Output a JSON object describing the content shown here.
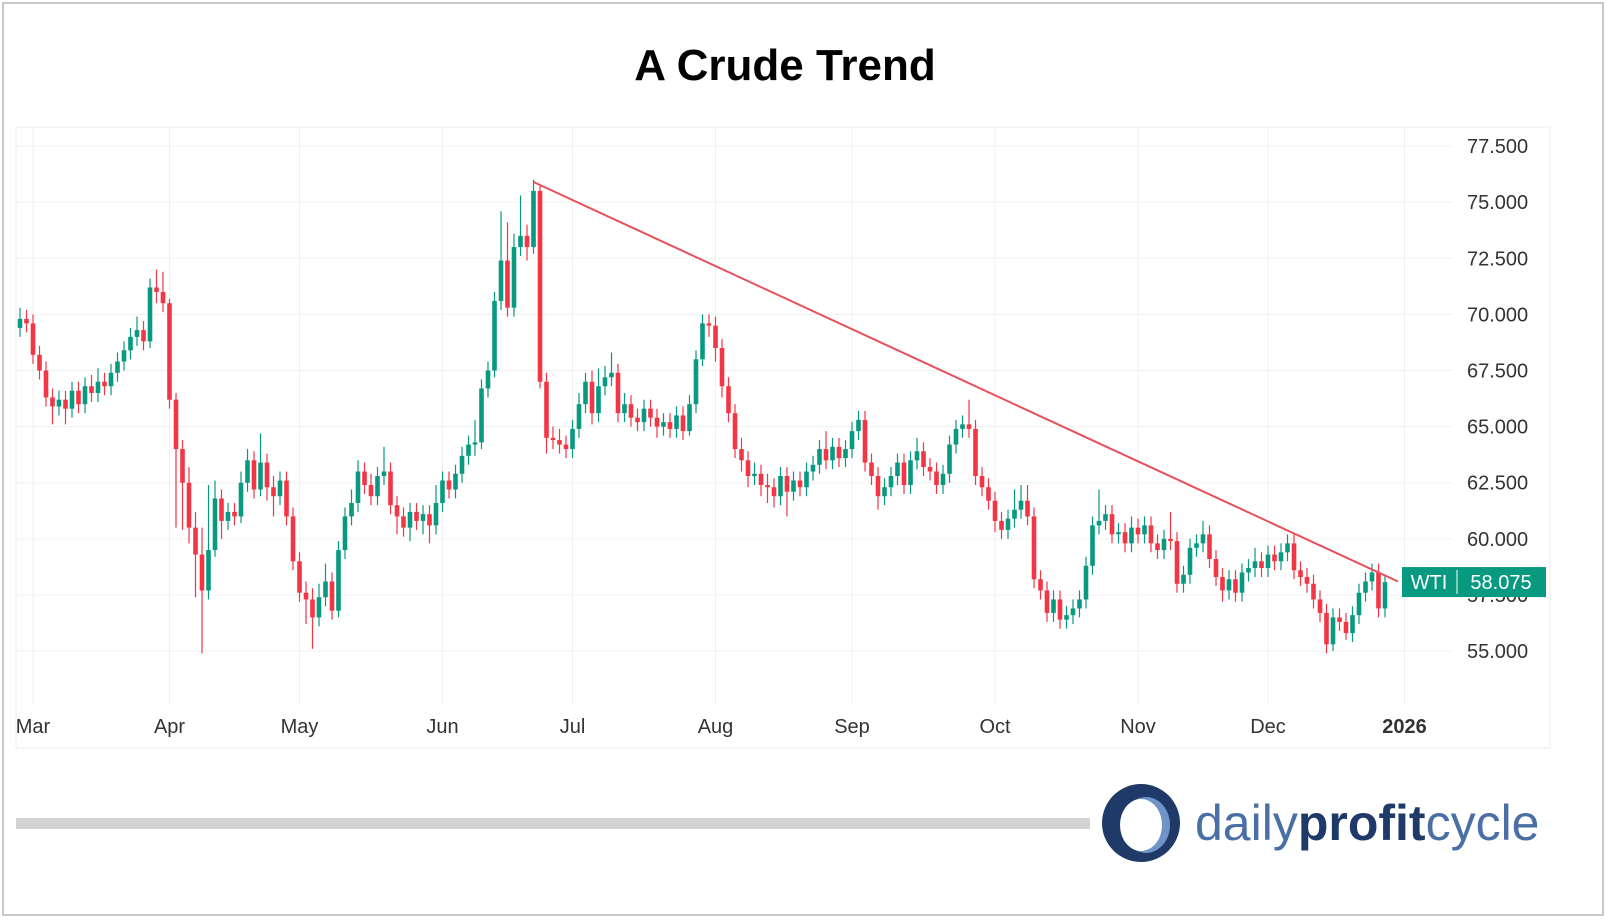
{
  "chart_data": {
    "type": "candlestick",
    "title": "A Crude Trend",
    "categories": [
      null,
      null,
      "Mar",
      null,
      null,
      null,
      null,
      null,
      null,
      null,
      null,
      null,
      null,
      null,
      null,
      null,
      null,
      null,
      null,
      null,
      null,
      null,
      null,
      "Apr",
      null,
      null,
      null,
      null,
      null,
      null,
      null,
      null,
      null,
      null,
      null,
      null,
      null,
      null,
      null,
      null,
      null,
      null,
      null,
      "May",
      null,
      null,
      null,
      null,
      null,
      null,
      null,
      null,
      null,
      null,
      null,
      null,
      null,
      null,
      null,
      null,
      null,
      null,
      null,
      null,
      null,
      "Jun",
      null,
      null,
      null,
      null,
      null,
      null,
      null,
      null,
      null,
      null,
      null,
      null,
      null,
      null,
      null,
      null,
      null,
      null,
      null,
      "Jul",
      null,
      null,
      null,
      null,
      null,
      null,
      null,
      null,
      null,
      null,
      null,
      null,
      null,
      null,
      null,
      null,
      null,
      null,
      null,
      null,
      null,
      "Aug",
      null,
      null,
      null,
      null,
      null,
      null,
      null,
      null,
      null,
      null,
      null,
      null,
      null,
      null,
      null,
      null,
      null,
      null,
      null,
      null,
      "Sep",
      null,
      null,
      null,
      null,
      null,
      null,
      null,
      null,
      null,
      null,
      null,
      null,
      null,
      null,
      null,
      null,
      null,
      null,
      null,
      null,
      null,
      "Oct",
      null,
      null,
      null,
      null,
      null,
      null,
      null,
      null,
      null,
      null,
      null,
      null,
      null,
      null,
      null,
      null,
      null,
      null,
      null,
      null,
      null,
      "Nov",
      null,
      null,
      null,
      null,
      null,
      null,
      null,
      null,
      null,
      null,
      null,
      null,
      null,
      null,
      null,
      null,
      null,
      null,
      null,
      "Dec",
      null,
      null,
      null,
      null,
      null,
      null,
      null,
      null,
      null,
      null,
      null,
      null,
      null,
      null,
      null,
      null,
      null,
      null,
      null,
      null,
      "2026"
    ],
    "series": [
      {
        "name": "WTI",
        "color_up": "#089981",
        "color_down": "#f23645",
        "last_value_label": "58.075",
        "open": [
          69.4,
          69.8,
          69.6,
          68.2,
          67.5,
          66.3,
          65.9,
          66.2,
          65.8,
          66.6,
          66.0,
          66.8,
          66.5,
          67.0,
          66.8,
          67.4,
          67.9,
          68.4,
          69.0,
          69.3,
          68.8,
          71.2,
          71.0,
          70.5,
          66.2,
          64.0,
          62.5,
          60.5,
          59.3,
          57.7,
          59.5,
          61.8,
          60.8,
          61.2,
          61.0,
          62.5,
          63.5,
          62.2,
          63.4,
          62.3,
          61.9,
          62.6,
          61.0,
          59.0,
          57.6,
          57.3,
          56.5,
          57.4,
          58.1,
          56.8,
          59.5,
          61.0,
          61.6,
          63.0,
          62.4,
          61.9,
          62.8,
          63.0,
          61.5,
          61.0,
          60.5,
          61.2,
          60.8,
          61.1,
          60.6,
          61.6,
          62.6,
          62.2,
          62.9,
          63.7,
          64.2,
          64.3,
          66.7,
          67.5,
          70.6,
          72.4,
          70.3,
          73.0,
          73.5,
          73.0,
          75.5,
          67.0,
          64.5,
          64.4,
          64.2,
          64.0,
          64.9,
          66.0,
          67.0,
          65.6,
          66.8,
          67.2,
          67.4,
          65.6,
          66.0,
          65.4,
          65.2,
          65.8,
          65.4,
          65.0,
          65.2,
          64.9,
          65.5,
          64.8,
          66.0,
          68.0,
          69.6,
          69.5,
          68.5,
          66.8,
          65.6,
          64.0,
          63.5,
          62.8,
          62.9,
          62.4,
          62.3,
          61.9,
          62.8,
          62.1,
          62.6,
          62.3,
          63.0,
          63.3,
          64.0,
          63.5,
          64.1,
          63.6,
          64.0,
          64.8,
          65.3,
          63.4,
          62.8,
          61.9,
          62.3,
          62.8,
          63.4,
          62.4,
          63.5,
          63.9,
          63.2,
          63.0,
          62.4,
          62.9,
          64.2,
          64.9,
          65.1,
          64.9,
          62.8,
          62.3,
          61.7,
          60.8,
          60.4,
          60.9,
          61.3,
          61.7,
          61.0,
          58.2,
          57.7,
          56.7,
          57.3,
          56.4,
          56.6,
          56.9,
          57.3,
          58.8,
          60.6,
          60.8,
          61.1,
          60.2,
          60.3,
          59.8,
          60.5,
          60.2,
          60.6,
          59.8,
          59.5,
          60.0,
          59.9,
          58.0,
          58.4,
          59.6,
          59.8,
          60.2,
          59.1,
          58.3,
          57.7,
          58.2,
          57.6,
          58.5,
          58.7,
          59.0,
          58.7,
          59.3,
          59.0,
          59.4,
          59.8,
          58.6,
          58.3,
          58.0,
          57.3,
          56.7,
          55.3,
          56.5,
          56.3,
          55.8,
          56.6,
          57.6,
          58.1,
          58.5,
          56.9,
          null,
          null,
          null
        ],
        "high": [
          70.3,
          70.2,
          70.0,
          68.6,
          67.9,
          66.7,
          66.6,
          66.6,
          67.0,
          67.0,
          67.2,
          67.3,
          67.6,
          67.4,
          67.8,
          68.3,
          68.8,
          69.4,
          69.9,
          69.7,
          71.6,
          72.0,
          71.9,
          70.7,
          66.5,
          64.4,
          63.2,
          61.2,
          60.5,
          62.4,
          62.6,
          62.2,
          61.6,
          61.6,
          63.0,
          64.0,
          63.9,
          64.7,
          63.8,
          62.8,
          63.0,
          63.0,
          61.4,
          59.4,
          58.1,
          57.8,
          58.0,
          58.9,
          58.5,
          59.9,
          61.4,
          62.2,
          63.5,
          63.4,
          62.9,
          63.2,
          64.1,
          63.4,
          61.9,
          61.4,
          61.6,
          61.6,
          61.5,
          61.5,
          62.4,
          63.0,
          63.0,
          63.3,
          64.1,
          64.6,
          65.3,
          67.1,
          67.9,
          71.0,
          74.6,
          74.1,
          73.6,
          75.3,
          74.0,
          76.0,
          75.8,
          67.4,
          65.0,
          64.9,
          64.6,
          65.3,
          66.5,
          67.4,
          67.5,
          67.6,
          67.7,
          68.3,
          67.8,
          66.5,
          66.4,
          65.8,
          66.2,
          66.2,
          65.8,
          65.6,
          65.6,
          65.9,
          65.9,
          66.4,
          68.4,
          70.0,
          70.0,
          69.9,
          68.9,
          67.2,
          66.0,
          64.5,
          63.9,
          63.4,
          63.3,
          62.9,
          62.7,
          63.2,
          63.2,
          63.0,
          63.0,
          63.4,
          63.7,
          64.4,
          64.8,
          64.5,
          64.5,
          64.4,
          65.2,
          65.7,
          65.7,
          63.8,
          63.2,
          62.7,
          63.2,
          63.8,
          63.8,
          63.9,
          64.5,
          64.3,
          63.6,
          63.4,
          63.3,
          64.6,
          65.3,
          65.5,
          66.2,
          65.3,
          63.2,
          62.7,
          62.1,
          61.2,
          61.3,
          62.2,
          62.4,
          62.4,
          61.4,
          58.6,
          58.1,
          57.7,
          57.7,
          57.0,
          57.3,
          57.7,
          59.2,
          61.0,
          62.2,
          61.5,
          61.5,
          60.7,
          60.7,
          61.0,
          60.9,
          61.0,
          61.0,
          60.2,
          60.4,
          61.2,
          60.3,
          58.8,
          60.0,
          60.2,
          60.8,
          60.6,
          59.5,
          58.7,
          58.6,
          58.6,
          58.9,
          59.1,
          59.6,
          59.4,
          59.7,
          59.7,
          59.8,
          60.2,
          60.2,
          59.0,
          58.7,
          58.4,
          57.7,
          57.1,
          56.9,
          56.9,
          56.7,
          57.0,
          58.0,
          58.5,
          58.9,
          58.9,
          58.4,
          null,
          null,
          null
        ],
        "low": [
          69.0,
          69.2,
          67.8,
          67.1,
          65.9,
          65.1,
          65.5,
          65.1,
          65.4,
          65.6,
          65.6,
          66.1,
          66.1,
          66.4,
          66.4,
          67.0,
          67.5,
          68.0,
          68.6,
          68.4,
          68.5,
          70.5,
          70.1,
          65.8,
          60.5,
          60.4,
          59.8,
          57.4,
          54.9,
          57.3,
          59.2,
          60.0,
          60.4,
          60.6,
          60.7,
          62.1,
          61.8,
          61.9,
          61.7,
          61.0,
          61.5,
          60.6,
          58.6,
          57.2,
          56.2,
          55.1,
          56.1,
          57.0,
          56.4,
          56.5,
          59.1,
          60.6,
          61.2,
          62.0,
          61.5,
          61.5,
          62.4,
          61.1,
          60.2,
          60.1,
          59.9,
          60.4,
          60.2,
          59.8,
          60.2,
          61.2,
          61.8,
          61.8,
          62.5,
          63.3,
          63.7,
          64.0,
          66.3,
          67.2,
          70.2,
          69.9,
          69.9,
          72.6,
          72.4,
          72.7,
          66.7,
          63.8,
          64.0,
          63.8,
          63.6,
          63.6,
          64.5,
          65.6,
          65.1,
          65.2,
          66.4,
          66.8,
          65.2,
          65.2,
          65.0,
          64.8,
          64.8,
          65.0,
          64.5,
          64.6,
          64.5,
          64.5,
          64.4,
          64.6,
          65.6,
          67.7,
          69.0,
          67.9,
          66.3,
          65.2,
          63.6,
          63.0,
          62.3,
          62.4,
          61.9,
          61.6,
          61.4,
          61.5,
          61.0,
          61.7,
          61.9,
          61.9,
          62.6,
          62.9,
          63.1,
          63.1,
          63.2,
          63.2,
          63.6,
          64.4,
          63.0,
          62.4,
          61.3,
          61.5,
          61.9,
          62.4,
          62.0,
          62.0,
          63.1,
          62.8,
          62.6,
          62.0,
          62.0,
          62.5,
          63.8,
          64.5,
          64.5,
          62.4,
          61.9,
          61.3,
          60.3,
          60.0,
          60.0,
          60.5,
          60.9,
          60.6,
          57.8,
          57.3,
          56.3,
          56.3,
          56.0,
          56.0,
          56.2,
          56.5,
          56.9,
          58.4,
          60.2,
          60.4,
          59.8,
          59.8,
          59.4,
          59.4,
          59.8,
          59.8,
          59.4,
          59.1,
          59.1,
          59.5,
          57.6,
          57.6,
          58.0,
          59.2,
          59.4,
          58.7,
          57.9,
          57.2,
          57.3,
          57.2,
          57.2,
          58.1,
          58.3,
          58.3,
          58.3,
          58.6,
          58.6,
          59.0,
          58.2,
          57.9,
          57.6,
          56.9,
          56.3,
          54.9,
          55.0,
          55.9,
          55.5,
          55.4,
          56.2,
          57.2,
          57.7,
          56.5,
          56.5,
          null,
          null,
          null
        ],
        "close": [
          69.8,
          69.6,
          68.2,
          67.5,
          66.3,
          65.9,
          66.2,
          65.8,
          66.6,
          66.0,
          66.8,
          66.5,
          67.0,
          66.8,
          67.4,
          67.9,
          68.4,
          69.0,
          69.3,
          68.8,
          71.2,
          71.0,
          70.5,
          66.2,
          64.0,
          62.5,
          60.5,
          59.3,
          57.7,
          59.5,
          61.8,
          60.8,
          61.2,
          61.0,
          62.5,
          63.5,
          62.2,
          63.4,
          62.3,
          61.9,
          62.6,
          61.0,
          59.0,
          57.6,
          57.3,
          56.5,
          57.4,
          58.1,
          56.8,
          59.5,
          61.0,
          61.6,
          63.0,
          62.4,
          61.9,
          62.8,
          63.0,
          61.5,
          61.0,
          60.5,
          61.2,
          60.8,
          61.1,
          60.6,
          61.6,
          62.6,
          62.2,
          62.9,
          63.7,
          64.2,
          64.3,
          66.7,
          67.5,
          70.6,
          72.4,
          70.3,
          73.0,
          73.5,
          73.0,
          75.5,
          67.0,
          64.5,
          64.4,
          64.2,
          64.0,
          64.9,
          66.0,
          67.0,
          65.6,
          66.8,
          67.2,
          67.4,
          65.6,
          66.0,
          65.4,
          65.2,
          65.8,
          65.4,
          65.0,
          65.2,
          64.9,
          65.5,
          64.8,
          66.0,
          68.0,
          69.6,
          69.5,
          68.5,
          66.8,
          65.6,
          64.0,
          63.5,
          62.8,
          62.9,
          62.4,
          62.3,
          61.9,
          62.8,
          62.1,
          62.6,
          62.3,
          63.0,
          63.3,
          64.0,
          63.5,
          64.1,
          63.6,
          64.0,
          64.8,
          65.3,
          63.4,
          62.8,
          61.9,
          62.3,
          62.8,
          63.4,
          62.4,
          63.5,
          63.9,
          63.2,
          63.0,
          62.4,
          62.9,
          64.2,
          64.9,
          65.1,
          64.9,
          62.8,
          62.3,
          61.7,
          60.8,
          60.4,
          60.9,
          61.3,
          61.7,
          61.0,
          58.2,
          57.7,
          56.7,
          57.3,
          56.4,
          56.6,
          56.9,
          57.3,
          58.8,
          60.6,
          60.8,
          61.1,
          60.2,
          60.3,
          59.8,
          60.5,
          60.2,
          60.6,
          59.8,
          59.5,
          60.0,
          59.9,
          58.0,
          58.4,
          59.6,
          59.8,
          60.2,
          59.1,
          58.3,
          57.7,
          58.2,
          57.6,
          58.5,
          58.7,
          59.0,
          58.7,
          59.3,
          59.0,
          59.4,
          59.8,
          58.6,
          58.3,
          58.0,
          57.3,
          56.7,
          55.3,
          56.5,
          56.3,
          55.8,
          56.6,
          57.6,
          58.1,
          58.5,
          56.9,
          58.075,
          null,
          null,
          null
        ]
      }
    ],
    "trendline": {
      "x": [
        79,
        212
      ],
      "y": [
        75.9,
        58.1
      ],
      "color": "#e5525a"
    },
    "ylim": [
      52.82,
      78.35
    ],
    "yticks": [
      {
        "value": 55,
        "label": "55.000"
      },
      {
        "value": 57.5,
        "label": "57.500"
      },
      {
        "value": 60,
        "label": "60.000"
      },
      {
        "value": 62.5,
        "label": "62.500"
      },
      {
        "value": 65,
        "label": "65.000"
      },
      {
        "value": 67.5,
        "label": "67.500"
      },
      {
        "value": 70,
        "label": "70.000"
      },
      {
        "value": 72.5,
        "label": "72.500"
      },
      {
        "value": 75,
        "label": "75.000"
      },
      {
        "value": 77.5,
        "label": "77.500"
      }
    ],
    "grid": true
  },
  "branding": {
    "part1": "daily",
    "part2": "profit",
    "part3": "cycle"
  }
}
